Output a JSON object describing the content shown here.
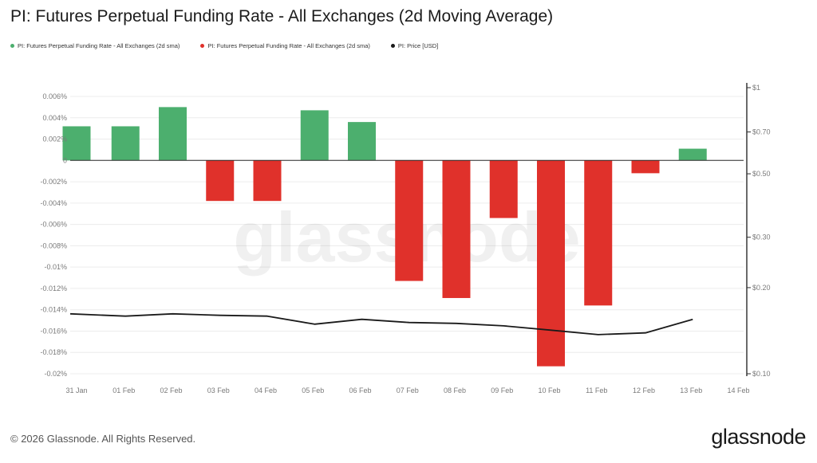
{
  "title": "PI: Futures Perpetual Funding Rate - All Exchanges (2d Moving Average)",
  "legend": [
    {
      "label": "PI: Futures Perpetual Funding Rate - All Exchanges (2d sma)",
      "color": "#4caf6e"
    },
    {
      "label": "PI: Futures Perpetual Funding Rate - All Exchanges (2d sma)",
      "color": "#e0312b"
    },
    {
      "label": "PI: Price [USD]",
      "color": "#1a1a1a"
    }
  ],
  "watermark": "glassnode",
  "footer": {
    "copyright": "© 2026 Glassnode. All Rights Reserved.",
    "brand": "glassnode"
  },
  "chart_data": {
    "type": "bar",
    "categories": [
      "31 Jan",
      "01 Feb",
      "02 Feb",
      "03 Feb",
      "04 Feb",
      "05 Feb",
      "06 Feb",
      "07 Feb",
      "08 Feb",
      "09 Feb",
      "10 Feb",
      "11 Feb",
      "12 Feb",
      "13 Feb",
      "14 Feb"
    ],
    "bar_x": [
      "31 Jan",
      "01 Feb",
      "02 Feb",
      "03 Feb",
      "04 Feb",
      "05 Feb",
      "06 Feb",
      "07 Feb",
      "08 Feb",
      "09 Feb",
      "10 Feb",
      "11 Feb",
      "12 Feb",
      "13 Feb"
    ],
    "funding_rate_pct": [
      0.0032,
      0.0032,
      0.005,
      -0.0038,
      -0.0038,
      0.0047,
      0.0036,
      -0.0113,
      -0.0129,
      -0.0054,
      -0.0193,
      -0.0136,
      -0.0012,
      0.0011
    ],
    "price_usd": [
      0.162,
      0.159,
      0.162,
      0.16,
      0.159,
      0.149,
      0.155,
      0.151,
      0.15,
      0.147,
      0.142,
      0.137,
      0.139,
      0.155
    ],
    "positive_color": "#4caf6e",
    "negative_color": "#e0312b",
    "price_color": "#1a1a1a",
    "left_axis": {
      "ylim": [
        -0.02,
        0.0065
      ],
      "ticks": [
        0.006,
        0.004,
        0.002,
        0,
        -0.002,
        -0.004,
        -0.006,
        -0.008,
        -0.01,
        -0.012,
        -0.014,
        -0.016,
        -0.018,
        -0.02
      ],
      "tick_labels": [
        "0.006%",
        "0.004%",
        "0.002%",
        "0",
        "-0.002%",
        "-0.004%",
        "-0.006%",
        "-0.008%",
        "-0.01%",
        "-0.012%",
        "-0.014%",
        "-0.016%",
        "-0.018%",
        "-0.02%"
      ]
    },
    "right_axis": {
      "scale": "log",
      "ylim": [
        0.1,
        1
      ],
      "ticks": [
        1,
        0.7,
        0.5,
        0.3,
        0.2,
        0.1
      ],
      "tick_labels": [
        "$1",
        "$0.70",
        "$0.50",
        "$0.30",
        "$0.20",
        "$0.10"
      ]
    },
    "grid": true
  }
}
